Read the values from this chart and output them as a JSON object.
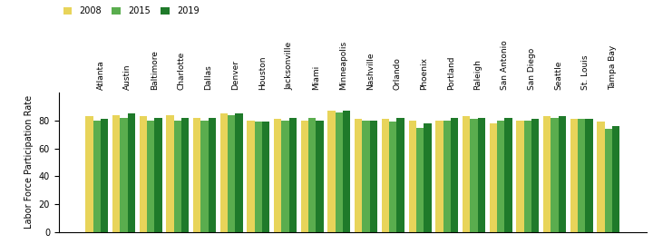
{
  "cities": [
    "Atlanta",
    "Austin",
    "Baltimore",
    "Charlotte",
    "Dallas",
    "Denver",
    "Houston",
    "Jacksonville",
    "Miami",
    "Minneapolis",
    "Nashville",
    "Orlando",
    "Phoenix",
    "Portland",
    "Raleigh",
    "San Antonio",
    "San Diego",
    "Seattle",
    "St. Louis",
    "Tampa Bay"
  ],
  "values_2008": [
    83,
    84,
    83,
    84,
    82,
    85,
    80,
    81,
    80,
    87,
    81,
    81,
    80,
    80,
    83,
    78,
    80,
    83,
    81,
    79
  ],
  "values_2015": [
    80,
    82,
    80,
    80,
    80,
    84,
    79,
    80,
    82,
    86,
    80,
    79,
    75,
    80,
    81,
    80,
    80,
    82,
    81,
    74
  ],
  "values_2019": [
    81,
    85,
    82,
    82,
    82,
    85,
    79,
    82,
    80,
    87,
    80,
    82,
    78,
    82,
    82,
    82,
    81,
    83,
    81,
    76
  ],
  "color_2008": "#E8D45A",
  "color_2015": "#5AAD4E",
  "color_2019": "#1F7A2A",
  "ylabel": "Labor Force Participation Rate",
  "ylim": [
    0,
    100
  ],
  "yticks": [
    0,
    20,
    40,
    60,
    80
  ],
  "legend_labels": [
    "2008",
    "2015",
    "2019"
  ],
  "bar_width": 0.28,
  "bg_color": "#f5f5f5"
}
